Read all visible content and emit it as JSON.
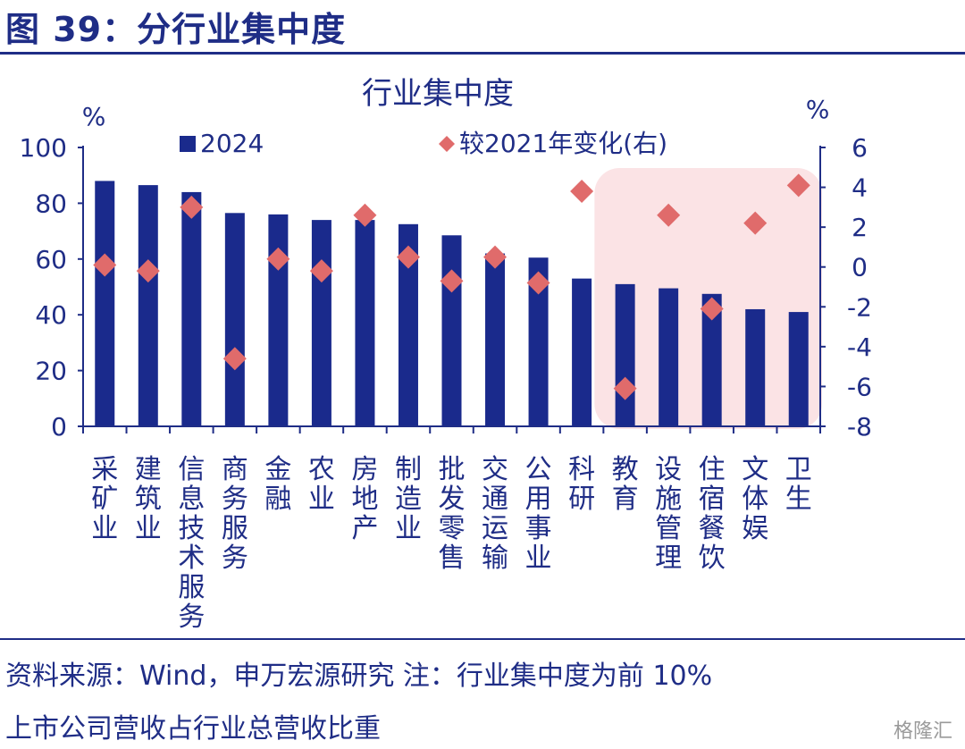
{
  "header": {
    "figure_title": "图 39：分行业集中度"
  },
  "chart_data": {
    "type": "bar",
    "title": "行业集中度",
    "categories": [
      "采矿业",
      "建筑业",
      "信息技术服务",
      "商务服务",
      "金融",
      "农业",
      "房地产",
      "制造业",
      "批发零售",
      "交通运输",
      "公用事业",
      "科研",
      "教育",
      "设施管理",
      "住宿餐饮",
      "文体娱",
      "卫生"
    ],
    "series": [
      {
        "name": "2024",
        "kind": "bar",
        "axis": "left",
        "values": [
          88,
          86.5,
          84,
          76.5,
          76,
          74,
          74,
          72.5,
          68.5,
          62,
          60.5,
          53,
          51,
          49.5,
          47.5,
          42,
          41
        ]
      },
      {
        "name": "较2021年变化(右)",
        "kind": "scatter",
        "axis": "right",
        "values": [
          0.1,
          -0.2,
          3.0,
          -4.6,
          0.4,
          -0.2,
          2.6,
          0.5,
          -0.7,
          0.5,
          -0.8,
          3.8,
          -6.1,
          2.6,
          -2.1,
          2.2,
          4.1
        ]
      }
    ],
    "y_left": {
      "unit": "%",
      "range": [
        0,
        100
      ],
      "ticks": [
        "0",
        "20",
        "40",
        "60",
        "80",
        "100"
      ]
    },
    "y_right": {
      "unit": "%",
      "range": [
        -8,
        6
      ],
      "ticks": [
        "-8",
        "-6",
        "-4",
        "-2",
        "0",
        "2",
        "4",
        "6"
      ]
    },
    "highlight": {
      "from_category": "教育",
      "to_category": "卫生",
      "color": "#fbe3e5"
    },
    "colors": {
      "bar": "#1a2a8c",
      "marker": "#e06b6b",
      "axis": "#1f2d86",
      "text": "#1f2d86"
    },
    "legend_position": "top"
  },
  "footer": {
    "note_line1": "资料来源：Wind，申万宏源研究  注：行业集中度为前 10%",
    "note_line2": "上市公司营收占行业总营收比重",
    "watermark": "格隆汇"
  }
}
